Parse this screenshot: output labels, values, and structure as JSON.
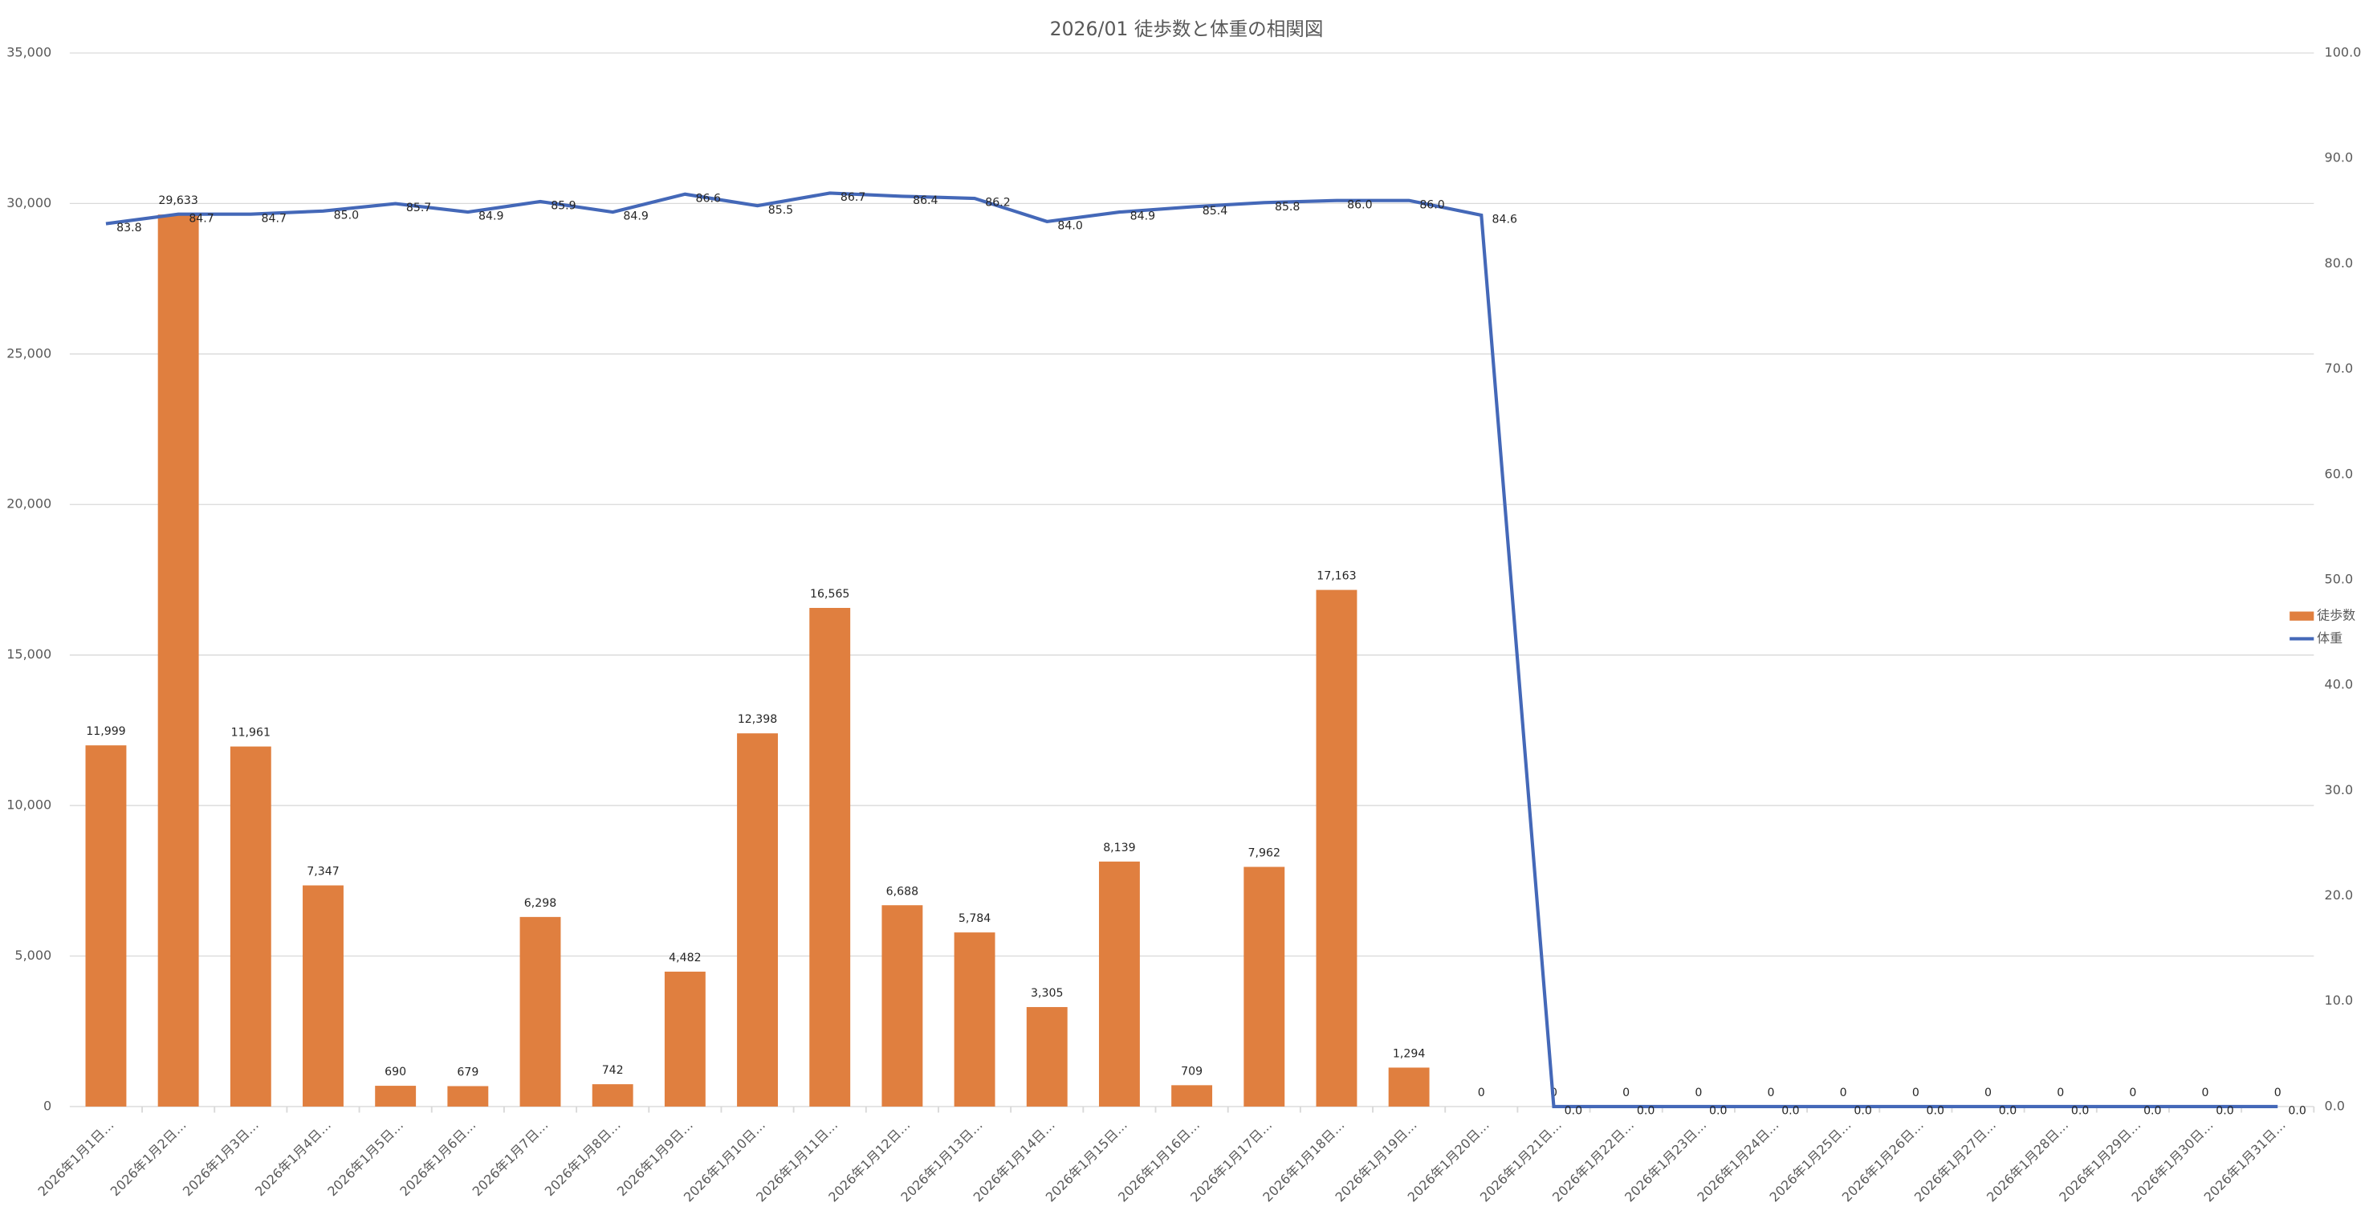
{
  "chart_data": {
    "type": "bar-line",
    "title": "2026/01 徒歩数と体重の相関図",
    "categories": [
      "2026年1月1日…",
      "2026年1月2日…",
      "2026年1月3日…",
      "2026年1月4日…",
      "2026年1月5日…",
      "2026年1月6日…",
      "2026年1月7日…",
      "2026年1月8日…",
      "2026年1月9日…",
      "2026年1月10日…",
      "2026年1月11日…",
      "2026年1月12日…",
      "2026年1月13日…",
      "2026年1月14日…",
      "2026年1月15日…",
      "2026年1月16日…",
      "2026年1月17日…",
      "2026年1月18日…",
      "2026年1月19日…",
      "2026年1月20日…",
      "2026年1月21日…",
      "2026年1月22日…",
      "2026年1月23日…",
      "2026年1月24日…",
      "2026年1月25日…",
      "2026年1月26日…",
      "2026年1月27日…",
      "2026年1月28日…",
      "2026年1月29日…",
      "2026年1月30日…",
      "2026年1月31日…"
    ],
    "series": [
      {
        "name": "徒歩数",
        "type": "bar",
        "color": "#e07f3f",
        "values": [
          11999,
          29633,
          11961,
          7347,
          690,
          679,
          6298,
          742,
          4482,
          12398,
          16565,
          6688,
          5784,
          3305,
          8139,
          709,
          7962,
          17163,
          1294,
          0,
          0,
          0,
          0,
          0,
          0,
          0,
          0,
          0,
          0,
          0,
          0
        ],
        "value_labels": [
          "11,999",
          "29,633",
          "11,961",
          "7,347",
          "690",
          "679",
          "6,298",
          "742",
          "4,482",
          "12,398",
          "16,565",
          "6,688",
          "5,784",
          "3,305",
          "8,139",
          "709",
          "7,962",
          "17,163",
          "1,294",
          "0",
          "0",
          "0",
          "0",
          "0",
          "0",
          "0",
          "0",
          "0",
          "0",
          "0",
          "0"
        ]
      },
      {
        "name": "体重",
        "type": "line",
        "axis": "y2",
        "color": "#4468b8",
        "values": [
          83.8,
          84.7,
          84.7,
          85.0,
          85.7,
          84.9,
          85.9,
          84.9,
          86.6,
          85.5,
          86.7,
          86.4,
          86.2,
          84.0,
          84.9,
          85.4,
          85.8,
          86.0,
          86.0,
          84.6,
          0,
          0,
          0,
          0,
          0,
          0,
          0,
          0,
          0,
          0,
          0
        ],
        "value_labels": [
          "83.8",
          "84.7",
          "84.7",
          "85.0",
          "85.7",
          "84.9",
          "85.9",
          "84.9",
          "86.6",
          "85.5",
          "86.7",
          "86.4",
          "86.2",
          "84.0",
          "84.9",
          "85.4",
          "85.8",
          "86.0",
          "86.0",
          "84.6",
          "0.0",
          "0.0",
          "0.0",
          "0.0",
          "0.0",
          "0.0",
          "0.0",
          "0.0",
          "0.0",
          "0.0",
          "0.0"
        ]
      }
    ],
    "ylim": [
      0,
      35000
    ],
    "yticks": [
      0,
      {
        "value": 5000,
        "label": "5,000"
      },
      {
        "value": 10000,
        "label": "10,000"
      },
      {
        "value": 15000,
        "label": "15,000"
      },
      {
        "value": 20000,
        "label": "20,000"
      },
      {
        "value": 25000,
        "label": "25,000"
      },
      {
        "value": 30000,
        "label": "30,000"
      },
      {
        "value": 35000,
        "label": "35,000"
      }
    ],
    "y2lim": [
      0,
      100
    ],
    "y2ticks": [
      {
        "value": 0,
        "label": "0.0"
      },
      {
        "value": 10,
        "label": "10.0"
      },
      {
        "value": 20,
        "label": "20.0"
      },
      {
        "value": 30,
        "label": "30.0"
      },
      {
        "value": 40,
        "label": "40.0"
      },
      {
        "value": 50,
        "label": "50.0"
      },
      {
        "value": 60,
        "label": "60.0"
      },
      {
        "value": 70,
        "label": "70.0"
      },
      {
        "value": 80,
        "label": "80.0"
      },
      {
        "value": 90,
        "label": "90.0"
      },
      {
        "value": 100,
        "label": "100.0"
      }
    ],
    "grid": true,
    "legend": "right"
  }
}
